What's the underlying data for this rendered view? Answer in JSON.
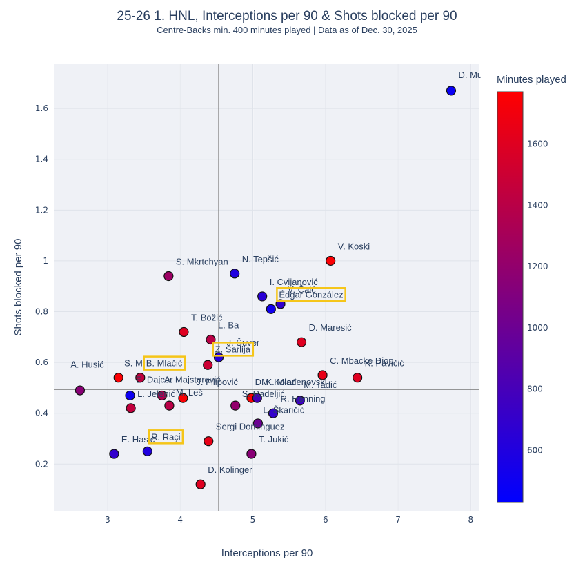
{
  "chart_data": {
    "type": "scatter",
    "title": "25-26 1. HNL, Interceptions per 90 & Shots blocked per 90",
    "subtitle": "Centre-Backs min. 400 minutes played | Data as of Dec. 30, 2025",
    "xlabel": "Interceptions per 90",
    "ylabel": "Shots blocked per 90",
    "xlim": [
      2.26,
      8.12
    ],
    "ylim": [
      0.016,
      1.777
    ],
    "xticks": [
      3,
      4,
      5,
      6,
      7,
      8
    ],
    "xtick_labels": [
      "3",
      "4",
      "5",
      "6",
      "7",
      "8"
    ],
    "yticks": [
      0.2,
      0.4,
      0.6,
      0.8,
      1.0,
      1.2,
      1.4,
      1.6
    ],
    "ytick_labels": [
      "0.2",
      "0.4",
      "0.6",
      "0.8",
      "1",
      "1.2",
      "1.4",
      "1.6"
    ],
    "grid": true,
    "reference_lines": {
      "x_mean": 4.53,
      "y_mean": 0.494
    },
    "colorbar": {
      "title": "Minutes played",
      "range": [
        430,
        1770
      ],
      "ticks": [
        600,
        800,
        1000,
        1200,
        1400,
        1600
      ],
      "tick_labels": [
        "600",
        "800",
        "1000",
        "1200",
        "1400",
        "1600"
      ],
      "color_low": "#0000ff",
      "color_high": "#ff0000"
    },
    "highlight_color": "#f5c518",
    "points": [
      {
        "label": "D. Mu",
        "x": 7.73,
        "y": 1.67,
        "minutes": 480,
        "highlight": false,
        "lx": 7.83,
        "ly": 1.72
      },
      {
        "label": "V. Koski",
        "x": 6.07,
        "y": 1.0,
        "minutes": 1750,
        "highlight": false,
        "lx": 6.17,
        "ly": 1.045
      },
      {
        "label": "S. Mkrtchyan",
        "x": 3.84,
        "y": 0.94,
        "minutes": 1250,
        "highlight": false,
        "lx": 3.94,
        "ly": 0.985
      },
      {
        "label": "N. Tepšić",
        "x": 4.75,
        "y": 0.95,
        "minutes": 600,
        "highlight": false,
        "lx": 4.85,
        "ly": 0.995
      },
      {
        "label": "I. Cvijanović",
        "x": 5.13,
        "y": 0.86,
        "minutes": 650,
        "highlight": false,
        "lx": 5.23,
        "ly": 0.905
      },
      {
        "label": "V. Čaić",
        "x": 5.38,
        "y": 0.83,
        "minutes": 700,
        "highlight": false,
        "lx": 5.48,
        "ly": 0.875
      },
      {
        "label": "Édgar González",
        "x": 5.25,
        "y": 0.81,
        "minutes": 520,
        "highlight": true,
        "lx": 5.36,
        "ly": 0.855
      },
      {
        "label": "T. Božić",
        "x": 4.05,
        "y": 0.72,
        "minutes": 1600,
        "highlight": false,
        "lx": 4.15,
        "ly": 0.765
      },
      {
        "label": "L. Ba",
        "x": 4.42,
        "y": 0.69,
        "minutes": 1400,
        "highlight": false,
        "lx": 4.52,
        "ly": 0.735
      },
      {
        "label": "D. Maresić",
        "x": 5.67,
        "y": 0.68,
        "minutes": 1600,
        "highlight": false,
        "lx": 5.77,
        "ly": 0.725
      },
      {
        "label": "J. Šuver",
        "x": 4.38,
        "y": 0.59,
        "minutes": 1500,
        "highlight": false,
        "lx": 4.64,
        "ly": 0.665
      },
      {
        "label": "Z. Sarlija",
        "x": 4.53,
        "y": 0.62,
        "minutes": 620,
        "highlight": true,
        "lx": 4.48,
        "ly": 0.64
      },
      {
        "label": "C. Mbacke Diop",
        "x": 5.96,
        "y": 0.55,
        "minutes": 1650,
        "highlight": false,
        "lx": 6.06,
        "ly": 0.595
      },
      {
        "label": "K. Pavičić",
        "x": 6.44,
        "y": 0.54,
        "minutes": 1600,
        "highlight": false,
        "lx": 6.54,
        "ly": 0.585
      },
      {
        "label": "S. Mkrtchyan2",
        "display": "S. M",
        "x": 3.45,
        "y": 0.54,
        "minutes": 1450,
        "highlight": false,
        "lx": 3.23,
        "ly": 0.585
      },
      {
        "label": "B. Mlačić",
        "x": 3.45,
        "y": 0.54,
        "minutes": 1450,
        "highlight": true,
        "lx": 3.53,
        "ly": 0.585,
        "marker": false
      },
      {
        "label": "A. Husić",
        "x": 3.15,
        "y": 0.54,
        "minutes": 1750,
        "highlight": false,
        "lx": 2.95,
        "ly": 0.58,
        "anchor": "end"
      },
      {
        "label": "A. Hus",
        "x": 2.62,
        "y": 0.49,
        "minutes": 1150,
        "highlight": false,
        "lx": 2.93,
        "ly": 0.58,
        "marker_only": true
      },
      {
        "label": "E. Dajcer",
        "x": 3.75,
        "y": 0.47,
        "minutes": 1350,
        "highlight": false,
        "lx": 3.39,
        "ly": 0.52
      },
      {
        "label": "A. Majstorović",
        "x": 4.04,
        "y": 0.46,
        "minutes": 1750,
        "highlight": false,
        "lx": 3.78,
        "ly": 0.52
      },
      {
        "label": "J. Filipović",
        "x": 3.85,
        "y": 0.43,
        "minutes": 1400,
        "highlight": false,
        "lx": 4.22,
        "ly": 0.51
      },
      {
        "label": "L. Jelenić",
        "x": 3.31,
        "y": 0.47,
        "minutes": 500,
        "highlight": false,
        "lx": 3.41,
        "ly": 0.465
      },
      {
        "label": "M. Leš",
        "x": 3.32,
        "y": 0.42,
        "minutes": 1450,
        "highlight": false,
        "lx": 3.94,
        "ly": 0.47
      },
      {
        "label": "S. Radeljić",
        "x": 4.98,
        "y": 0.46,
        "minutes": 1750,
        "highlight": false,
        "lx": 4.85,
        "ly": 0.465
      },
      {
        "label": "DM. Kolar",
        "x": 4.76,
        "y": 0.43,
        "minutes": 1200,
        "highlight": false,
        "lx": 5.03,
        "ly": 0.51
      },
      {
        "label": "K. Mlađenovski",
        "x": 5.06,
        "y": 0.46,
        "minutes": 800,
        "highlight": false,
        "lx": 5.18,
        "ly": 0.51
      },
      {
        "label": "M. Tadić",
        "x": 5.65,
        "y": 0.45,
        "minutes": 750,
        "highlight": false,
        "lx": 5.7,
        "ly": 0.5
      },
      {
        "label": "R. Henning",
        "x": 5.28,
        "y": 0.4,
        "minutes": 700,
        "highlight": false,
        "lx": 5.38,
        "ly": 0.445
      },
      {
        "label": "L. Škaričić",
        "x": 5.07,
        "y": 0.36,
        "minutes": 1000,
        "highlight": false,
        "lx": 5.14,
        "ly": 0.4
      },
      {
        "label": "Sergi Dominguez",
        "x": 4.39,
        "y": 0.29,
        "minutes": 1650,
        "highlight": false,
        "lx": 4.49,
        "ly": 0.335
      },
      {
        "label": "T. Jukić",
        "x": 4.98,
        "y": 0.24,
        "minutes": 1150,
        "highlight": false,
        "lx": 5.08,
        "ly": 0.285
      },
      {
        "label": "E. Hasić",
        "x": 3.09,
        "y": 0.24,
        "minutes": 700,
        "highlight": false,
        "lx": 3.19,
        "ly": 0.285
      },
      {
        "label": "R. Raçi",
        "x": 3.55,
        "y": 0.25,
        "minutes": 600,
        "highlight": true,
        "lx": 3.6,
        "ly": 0.295
      },
      {
        "label": "D. Kolinger",
        "x": 4.28,
        "y": 0.12,
        "minutes": 1600,
        "highlight": false,
        "lx": 4.38,
        "ly": 0.165
      }
    ]
  }
}
